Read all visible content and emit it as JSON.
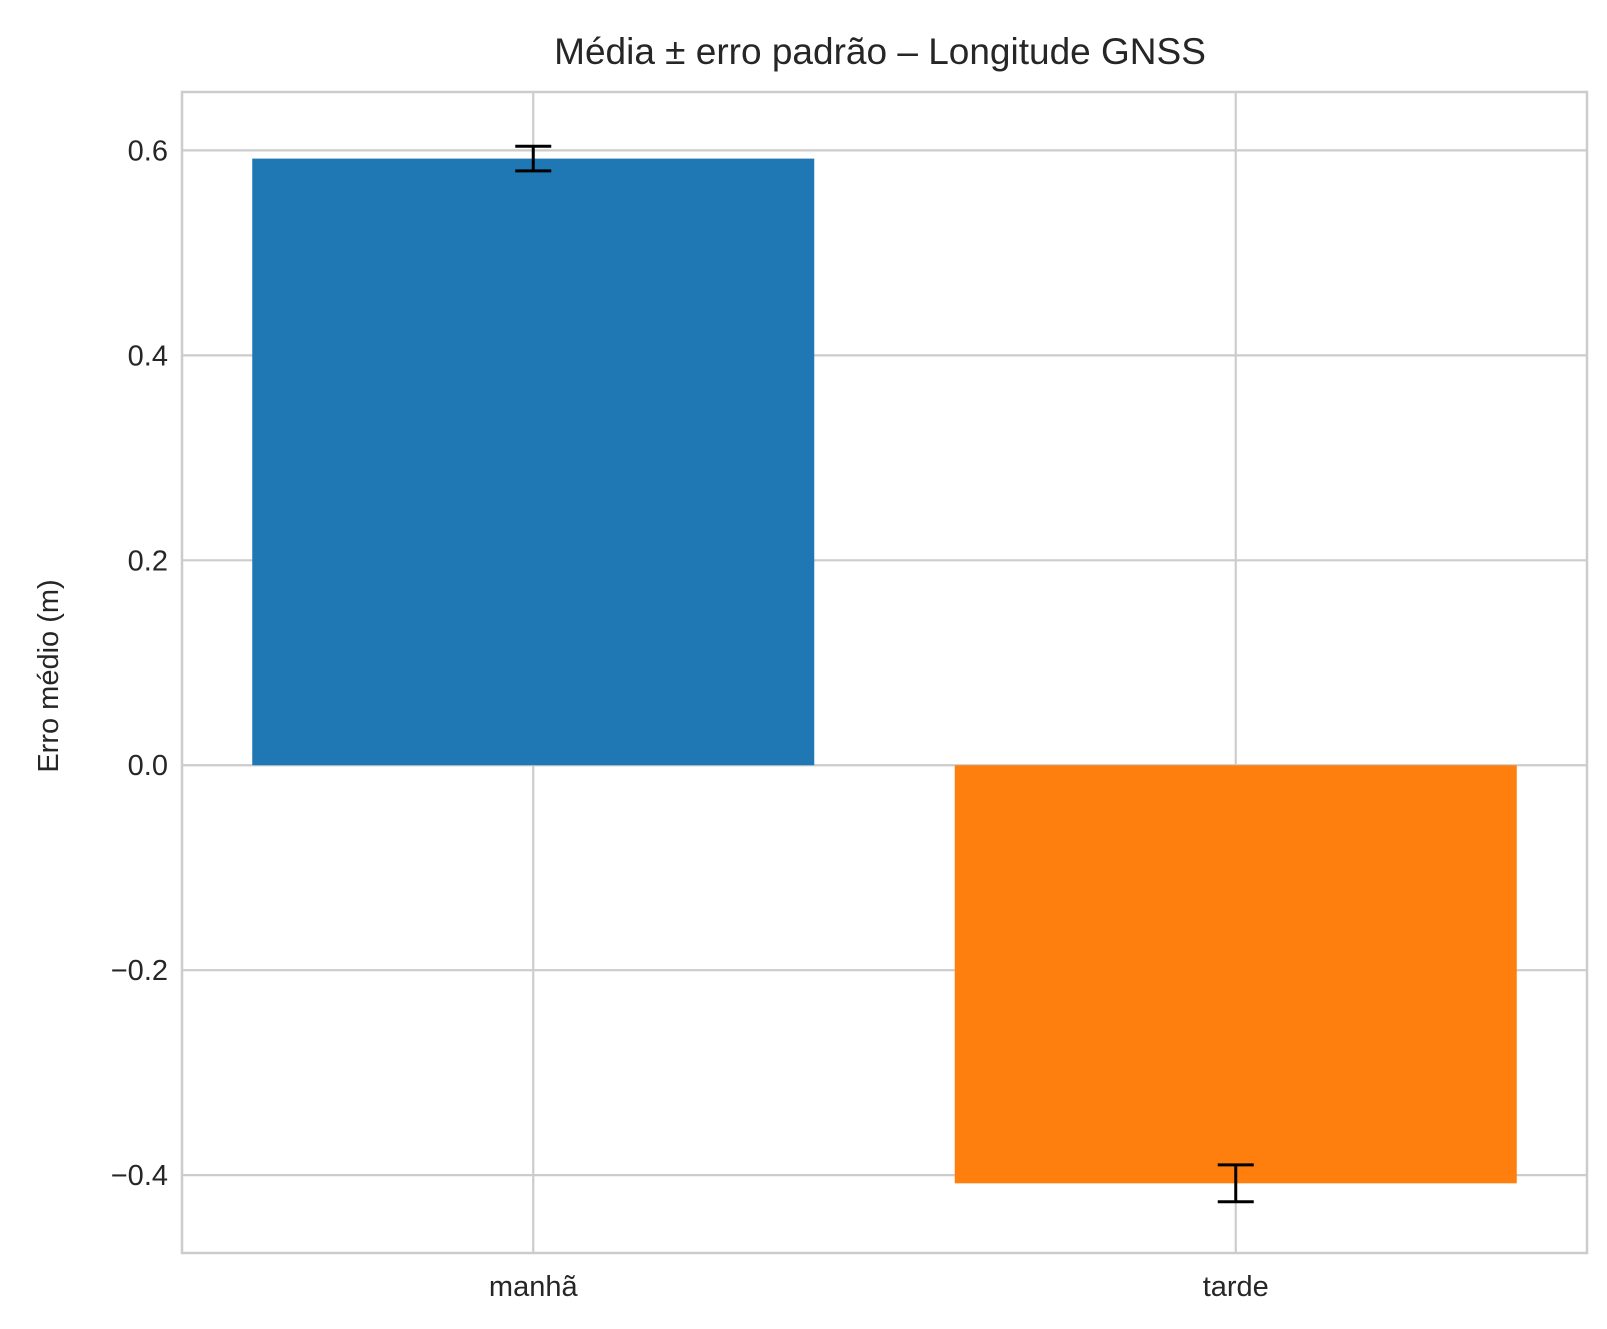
{
  "chart_data": {
    "type": "bar",
    "title": "Média ± erro padrão – Longitude GNSS",
    "xlabel": "",
    "ylabel": "Erro médio (m)",
    "categories": [
      "manhã",
      "tarde"
    ],
    "values": [
      0.592,
      -0.408
    ],
    "errors": [
      0.012,
      0.018
    ],
    "colors": [
      "#1f77b4",
      "#ff7f0e"
    ],
    "ylim": [
      -0.476,
      0.657
    ],
    "yticks": [
      0.6,
      0.4,
      0.2,
      0.0,
      -0.2,
      -0.4
    ],
    "ytick_labels": [
      "0.6",
      "0.4",
      "0.2",
      "0.0",
      "−0.2",
      "−0.4"
    ],
    "grid": true
  }
}
